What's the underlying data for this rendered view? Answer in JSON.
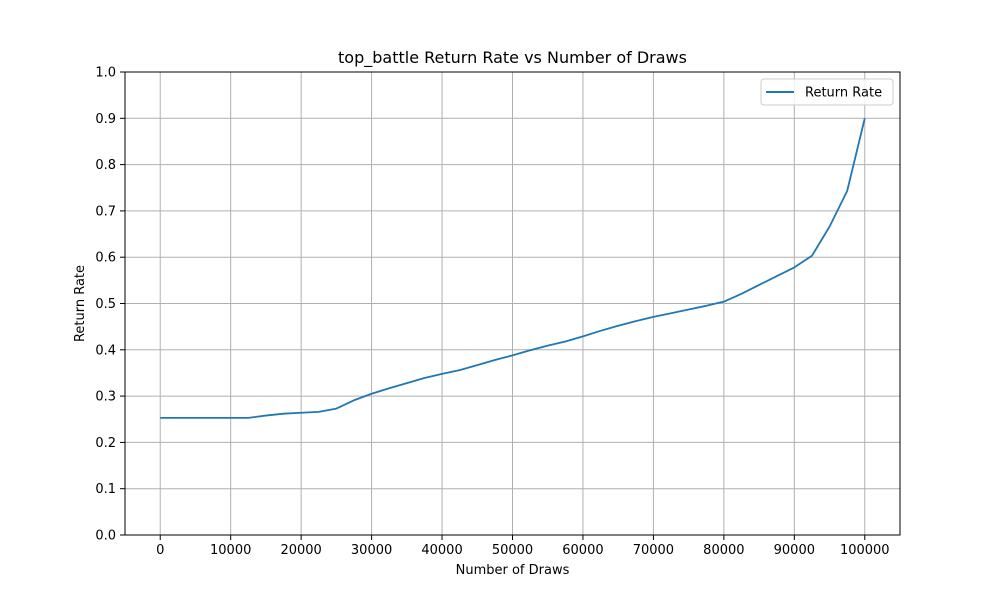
{
  "chart_data": {
    "type": "line",
    "title": "top_battle Return Rate vs Number of Draws",
    "xlabel": "Number of Draws",
    "ylabel": "Return Rate",
    "xlim": [
      -5000,
      105000
    ],
    "ylim": [
      0.0,
      1.0
    ],
    "x_ticks": [
      0,
      10000,
      20000,
      30000,
      40000,
      50000,
      60000,
      70000,
      80000,
      90000,
      100000
    ],
    "x_tick_labels": [
      "0",
      "10000",
      "20000",
      "30000",
      "40000",
      "50000",
      "60000",
      "70000",
      "80000",
      "90000",
      "100000"
    ],
    "y_ticks": [
      0.0,
      0.1,
      0.2,
      0.3,
      0.4,
      0.5,
      0.6,
      0.7,
      0.8,
      0.9,
      1.0
    ],
    "y_tick_labels": [
      "0.0",
      "0.1",
      "0.2",
      "0.3",
      "0.4",
      "0.5",
      "0.6",
      "0.7",
      "0.8",
      "0.9",
      "1.0"
    ],
    "grid": true,
    "legend_position": "top-right",
    "series": [
      {
        "name": "Return Rate",
        "color": "#1f77b4",
        "x": [
          0,
          2500,
          5000,
          7500,
          10000,
          12500,
          15000,
          17500,
          20000,
          22500,
          25000,
          27500,
          30000,
          32500,
          35000,
          37500,
          40000,
          42500,
          45000,
          47500,
          50000,
          52500,
          55000,
          57500,
          60000,
          62500,
          65000,
          67500,
          70000,
          72500,
          75000,
          77500,
          80000,
          82500,
          85000,
          87500,
          90000,
          92500,
          95000,
          97500,
          100000
        ],
        "y": [
          0.253,
          0.253,
          0.253,
          0.253,
          0.253,
          0.253,
          0.258,
          0.262,
          0.264,
          0.266,
          0.273,
          0.291,
          0.305,
          0.317,
          0.328,
          0.339,
          0.348,
          0.356,
          0.367,
          0.378,
          0.388,
          0.399,
          0.409,
          0.418,
          0.429,
          0.441,
          0.452,
          0.462,
          0.471,
          0.479,
          0.487,
          0.495,
          0.504,
          0.521,
          0.54,
          0.559,
          0.578,
          0.603,
          0.666,
          0.743,
          0.9
        ]
      }
    ]
  }
}
